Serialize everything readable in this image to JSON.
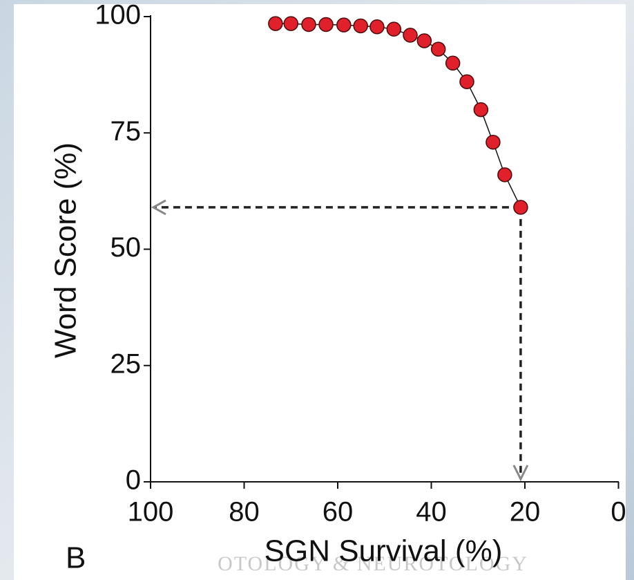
{
  "chart_data": {
    "type": "scatter",
    "panel_label": "B",
    "watermark": "OTOLOGY & NEUROTOLOGY",
    "x_label": "SGN Survival (%)",
    "y_label": "Word Score (%)",
    "x": [
      73.3,
      70.0,
      66.2,
      62.5,
      58.7,
      55.1,
      51.6,
      48.0,
      44.5,
      41.5,
      38.5,
      35.4,
      32.4,
      29.4,
      26.8,
      24.3,
      20.9
    ],
    "values": [
      98.5,
      98.5,
      98.3,
      98.3,
      98.2,
      98,
      97.8,
      97.3,
      96,
      94.8,
      93,
      90,
      86,
      80,
      73,
      66,
      59
    ],
    "color": "#e0202a",
    "xlim": [
      100,
      0
    ],
    "xticks": [
      100,
      80,
      60,
      40,
      20,
      0
    ],
    "ylim": [
      0,
      100
    ],
    "yticks": [
      0,
      25,
      50,
      75,
      100
    ]
  }
}
